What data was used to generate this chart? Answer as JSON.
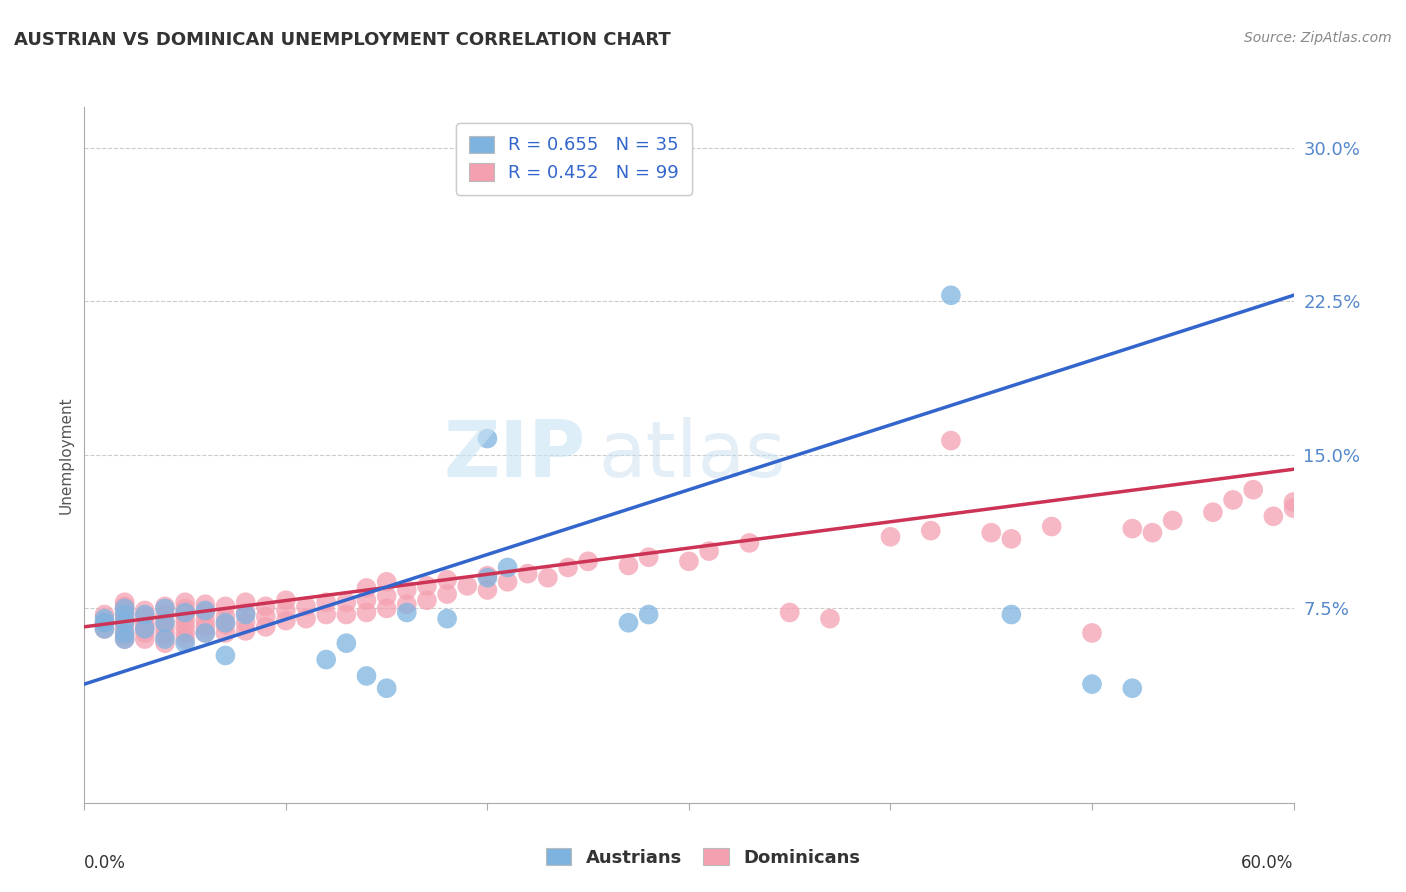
{
  "title": "AUSTRIAN VS DOMINICAN UNEMPLOYMENT CORRELATION CHART",
  "source": "Source: ZipAtlas.com",
  "ylabel": "Unemployment",
  "xlim": [
    0.0,
    0.6
  ],
  "ylim": [
    -0.02,
    0.32
  ],
  "yticks": [
    0.075,
    0.15,
    0.225,
    0.3
  ],
  "ytick_labels": [
    "7.5%",
    "15.0%",
    "22.5%",
    "30.0%"
  ],
  "xticks": [
    0.0,
    0.1,
    0.2,
    0.3,
    0.4,
    0.5,
    0.6
  ],
  "legend_r_austrians": "R = 0.655",
  "legend_n_austrians": "N = 35",
  "legend_r_dominicans": "R = 0.452",
  "legend_n_dominicans": "N = 99",
  "color_austrians": "#7EB3E0",
  "color_dominicans": "#F4A0B0",
  "line_color_austrians": "#3366CC",
  "line_color_dominicans": "#CC3355",
  "background_color": "#ffffff",
  "austrians_x": [
    0.01,
    0.01,
    0.01,
    0.02,
    0.02,
    0.02,
    0.02,
    0.02,
    0.03,
    0.03,
    0.04,
    0.04,
    0.04,
    0.05,
    0.05,
    0.06,
    0.06,
    0.07,
    0.07,
    0.08,
    0.12,
    0.13,
    0.14,
    0.15,
    0.16,
    0.18,
    0.2,
    0.2,
    0.21,
    0.27,
    0.28,
    0.43,
    0.46,
    0.5,
    0.52
  ],
  "austrians_y": [
    0.065,
    0.068,
    0.07,
    0.06,
    0.063,
    0.068,
    0.072,
    0.075,
    0.065,
    0.072,
    0.06,
    0.068,
    0.075,
    0.058,
    0.073,
    0.063,
    0.074,
    0.052,
    0.068,
    0.072,
    0.05,
    0.058,
    0.042,
    0.036,
    0.073,
    0.07,
    0.158,
    0.09,
    0.095,
    0.068,
    0.072,
    0.228,
    0.072,
    0.038,
    0.036
  ],
  "dominicans_x": [
    0.01,
    0.01,
    0.01,
    0.02,
    0.02,
    0.02,
    0.02,
    0.02,
    0.02,
    0.02,
    0.02,
    0.02,
    0.03,
    0.03,
    0.03,
    0.03,
    0.03,
    0.03,
    0.04,
    0.04,
    0.04,
    0.04,
    0.04,
    0.04,
    0.05,
    0.05,
    0.05,
    0.05,
    0.05,
    0.05,
    0.05,
    0.06,
    0.06,
    0.06,
    0.06,
    0.06,
    0.07,
    0.07,
    0.07,
    0.07,
    0.08,
    0.08,
    0.08,
    0.08,
    0.09,
    0.09,
    0.09,
    0.1,
    0.1,
    0.1,
    0.11,
    0.11,
    0.12,
    0.12,
    0.13,
    0.13,
    0.14,
    0.14,
    0.14,
    0.15,
    0.15,
    0.15,
    0.16,
    0.16,
    0.17,
    0.17,
    0.18,
    0.18,
    0.19,
    0.2,
    0.2,
    0.21,
    0.22,
    0.23,
    0.24,
    0.25,
    0.27,
    0.28,
    0.3,
    0.31,
    0.33,
    0.35,
    0.37,
    0.4,
    0.42,
    0.43,
    0.45,
    0.46,
    0.48,
    0.5,
    0.52,
    0.53,
    0.54,
    0.56,
    0.57,
    0.58,
    0.59,
    0.6,
    0.6
  ],
  "dominicans_y": [
    0.065,
    0.068,
    0.072,
    0.06,
    0.062,
    0.065,
    0.068,
    0.07,
    0.072,
    0.074,
    0.076,
    0.078,
    0.06,
    0.063,
    0.066,
    0.068,
    0.071,
    0.074,
    0.058,
    0.062,
    0.065,
    0.068,
    0.072,
    0.076,
    0.06,
    0.063,
    0.066,
    0.069,
    0.072,
    0.075,
    0.078,
    0.063,
    0.066,
    0.069,
    0.073,
    0.077,
    0.063,
    0.067,
    0.071,
    0.076,
    0.064,
    0.068,
    0.073,
    0.078,
    0.066,
    0.071,
    0.076,
    0.069,
    0.074,
    0.079,
    0.07,
    0.076,
    0.072,
    0.078,
    0.072,
    0.078,
    0.073,
    0.079,
    0.085,
    0.075,
    0.081,
    0.088,
    0.077,
    0.084,
    0.079,
    0.086,
    0.082,
    0.089,
    0.086,
    0.084,
    0.091,
    0.088,
    0.092,
    0.09,
    0.095,
    0.098,
    0.096,
    0.1,
    0.098,
    0.103,
    0.107,
    0.073,
    0.07,
    0.11,
    0.113,
    0.157,
    0.112,
    0.109,
    0.115,
    0.063,
    0.114,
    0.112,
    0.118,
    0.122,
    0.128,
    0.133,
    0.12,
    0.124,
    0.127
  ],
  "austrians_trendline_x": [
    0.0,
    0.6
  ],
  "austrians_trendline_y": [
    0.038,
    0.228
  ],
  "dominicans_trendline_x": [
    0.0,
    0.6
  ],
  "dominicans_trendline_y": [
    0.066,
    0.143
  ]
}
